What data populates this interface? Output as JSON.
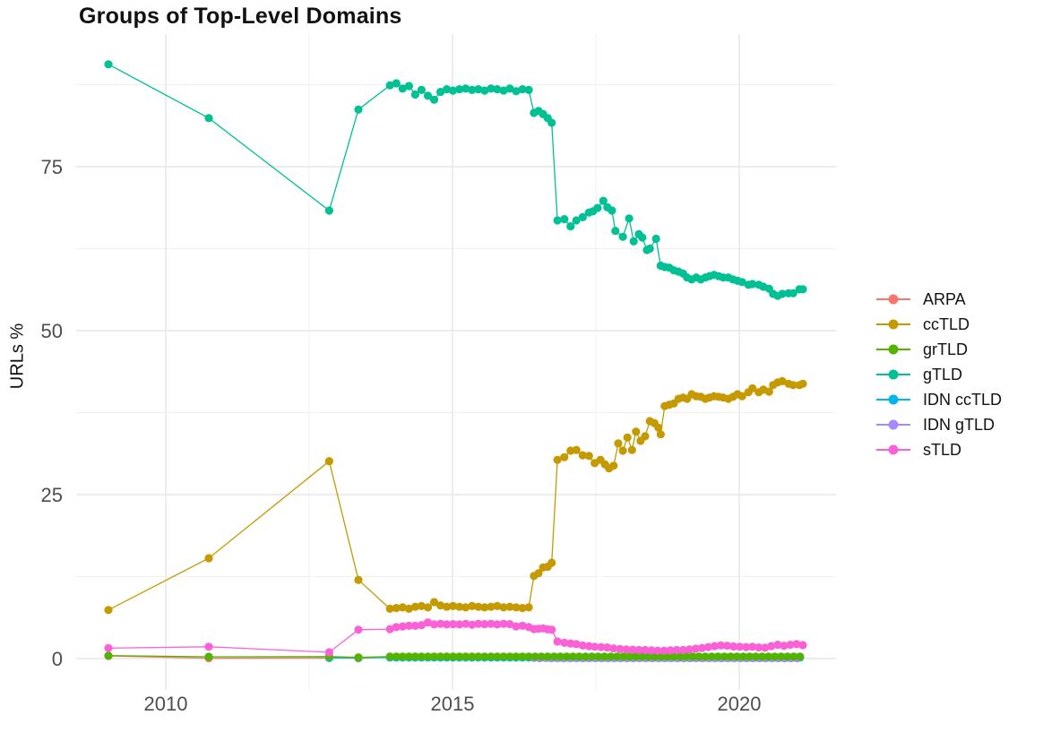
{
  "page": {
    "title": "Groups of Top-Level Domains"
  },
  "axis": {
    "y_tick_labels": [
      "0",
      "25",
      "50",
      "75"
    ],
    "x_tick_labels": [
      "2010",
      "2015",
      "2020"
    ]
  },
  "colors": {
    "title_text": "#111111",
    "tick_text": "#4d4d4d",
    "grid_major": "#e5e5e5",
    "grid_minor": "#f1f1f1",
    "background": "#ffffff"
  },
  "chart_data": {
    "type": "line",
    "title": "Groups of Top-Level Domains",
    "xlabel": "",
    "ylabel": "URLs %",
    "grid": "on",
    "legend_position": "right",
    "xlim": [
      2008.45,
      2021.7
    ],
    "ylim": [
      -4.8,
      95.2
    ],
    "x_ticks_major": [
      2010,
      2015,
      2020
    ],
    "x_ticks_minor": [
      2012.5,
      2017.5
    ],
    "y_ticks_major": [
      0,
      25,
      50,
      75
    ],
    "y_ticks_minor": [
      12.5,
      37.5,
      62.5,
      87.5
    ],
    "draw_order": [
      "ARPA",
      "IDN ccTLD",
      "IDN gTLD",
      "grTLD",
      "ccTLD",
      "gTLD",
      "sTLD"
    ],
    "series": [
      {
        "name": "ARPA",
        "color": "#F8766D",
        "points": [
          [
            2009.0,
            0.4
          ],
          [
            2010.75,
            0.05
          ],
          [
            2012.85,
            0.08
          ],
          [
            2013.36,
            0.05
          ],
          {
            "from": 2013.91,
            "to": 2021.11,
            "step": 0.11,
            "value": 0.22
          }
        ]
      },
      {
        "name": "ccTLD",
        "color": "#C49A00",
        "points": [
          [
            2009.0,
            7.4
          ],
          [
            2010.75,
            15.3
          ],
          [
            2012.85,
            30.1
          ],
          [
            2013.36,
            12.0
          ],
          [
            2013.91,
            7.6
          ],
          [
            2014.02,
            7.7
          ],
          [
            2014.13,
            7.8
          ],
          [
            2014.24,
            7.6
          ],
          [
            2014.35,
            7.9
          ],
          [
            2014.46,
            8.0
          ],
          [
            2014.57,
            7.8
          ],
          [
            2014.68,
            8.6
          ],
          [
            2014.79,
            8.1
          ],
          [
            2014.9,
            7.9
          ],
          [
            2015.01,
            8.0
          ],
          [
            2015.12,
            7.9
          ],
          [
            2015.23,
            7.8
          ],
          [
            2015.34,
            8.0
          ],
          [
            2015.45,
            7.9
          ],
          [
            2015.56,
            7.8
          ],
          [
            2015.67,
            7.9
          ],
          [
            2015.78,
            8.0
          ],
          [
            2015.89,
            7.8
          ],
          [
            2016.0,
            7.9
          ],
          [
            2016.11,
            7.8
          ],
          [
            2016.22,
            7.7
          ],
          [
            2016.33,
            7.8
          ],
          [
            2016.42,
            12.6
          ],
          [
            2016.5,
            13.0
          ],
          [
            2016.58,
            13.9
          ],
          [
            2016.66,
            14.0
          ],
          [
            2016.73,
            14.6
          ],
          [
            2016.83,
            30.3
          ],
          [
            2016.95,
            30.7
          ],
          [
            2017.06,
            31.7
          ],
          [
            2017.16,
            31.8
          ],
          [
            2017.27,
            31.0
          ],
          [
            2017.38,
            30.9
          ],
          [
            2017.48,
            29.8
          ],
          [
            2017.58,
            30.3
          ],
          [
            2017.66,
            29.6
          ],
          [
            2017.73,
            29.0
          ],
          [
            2017.81,
            29.4
          ],
          [
            2017.89,
            32.8
          ],
          [
            2017.97,
            31.7
          ],
          [
            2018.05,
            33.7
          ],
          [
            2018.13,
            31.8
          ],
          [
            2018.2,
            34.6
          ],
          [
            2018.28,
            33.2
          ],
          [
            2018.36,
            33.9
          ],
          [
            2018.44,
            36.2
          ],
          [
            2018.52,
            35.9
          ],
          [
            2018.59,
            35.2
          ],
          [
            2018.63,
            34.2
          ],
          [
            2018.7,
            38.5
          ],
          [
            2018.78,
            38.7
          ],
          [
            2018.86,
            38.9
          ],
          [
            2018.94,
            39.6
          ],
          [
            2019.02,
            39.8
          ],
          [
            2019.09,
            39.6
          ],
          [
            2019.17,
            40.3
          ],
          [
            2019.25,
            40.0
          ],
          [
            2019.33,
            39.9
          ],
          [
            2019.41,
            39.6
          ],
          [
            2019.48,
            39.8
          ],
          [
            2019.56,
            40.0
          ],
          [
            2019.64,
            39.9
          ],
          [
            2019.72,
            39.8
          ],
          [
            2019.81,
            39.6
          ],
          [
            2019.89,
            39.9
          ],
          [
            2019.97,
            40.3
          ],
          [
            2020.05,
            40.0
          ],
          [
            2020.16,
            40.6
          ],
          [
            2020.23,
            41.2
          ],
          [
            2020.34,
            40.6
          ],
          [
            2020.42,
            41.0
          ],
          [
            2020.52,
            40.7
          ],
          [
            2020.59,
            41.7
          ],
          [
            2020.67,
            42.1
          ],
          [
            2020.75,
            42.3
          ],
          [
            2020.86,
            41.9
          ],
          [
            2020.94,
            41.7
          ],
          [
            2021.05,
            41.7
          ],
          [
            2021.11,
            41.9
          ]
        ]
      },
      {
        "name": "grTLD",
        "color": "#53B400",
        "points": [
          [
            2009.0,
            0.45
          ],
          [
            2010.75,
            0.28
          ],
          [
            2012.85,
            0.3
          ],
          [
            2013.36,
            0.18
          ],
          {
            "from": 2013.91,
            "to": 2021.11,
            "step": 0.11,
            "value": 0.3
          }
        ]
      },
      {
        "name": "gTLD",
        "color": "#00C094",
        "points": [
          [
            2009.0,
            90.6
          ],
          [
            2010.75,
            82.4
          ],
          [
            2012.85,
            68.3
          ],
          [
            2013.36,
            83.7
          ],
          [
            2013.91,
            87.4
          ],
          [
            2014.02,
            87.7
          ],
          [
            2014.13,
            86.9
          ],
          [
            2014.24,
            87.3
          ],
          [
            2014.35,
            86.0
          ],
          [
            2014.46,
            86.7
          ],
          [
            2014.57,
            85.8
          ],
          [
            2014.68,
            85.2
          ],
          [
            2014.79,
            86.4
          ],
          [
            2014.9,
            86.8
          ],
          [
            2015.01,
            86.6
          ],
          [
            2015.12,
            86.8
          ],
          [
            2015.23,
            86.9
          ],
          [
            2015.34,
            86.7
          ],
          [
            2015.45,
            86.8
          ],
          [
            2015.56,
            86.6
          ],
          [
            2015.67,
            86.9
          ],
          [
            2015.78,
            86.8
          ],
          [
            2015.89,
            86.6
          ],
          [
            2016.0,
            86.9
          ],
          [
            2016.11,
            86.5
          ],
          [
            2016.22,
            86.8
          ],
          [
            2016.33,
            86.7
          ],
          [
            2016.42,
            83.2
          ],
          [
            2016.5,
            83.5
          ],
          [
            2016.58,
            83.0
          ],
          [
            2016.66,
            82.4
          ],
          [
            2016.73,
            81.7
          ],
          [
            2016.83,
            66.8
          ],
          [
            2016.95,
            67.0
          ],
          [
            2017.06,
            65.9
          ],
          [
            2017.16,
            66.8
          ],
          [
            2017.27,
            67.3
          ],
          [
            2017.38,
            68.0
          ],
          [
            2017.45,
            68.2
          ],
          [
            2017.53,
            68.7
          ],
          [
            2017.63,
            69.8
          ],
          [
            2017.7,
            68.8
          ],
          [
            2017.78,
            68.3
          ],
          [
            2017.84,
            65.2
          ],
          [
            2017.97,
            64.3
          ],
          [
            2018.08,
            67.1
          ],
          [
            2018.16,
            63.6
          ],
          [
            2018.25,
            64.7
          ],
          [
            2018.31,
            64.2
          ],
          [
            2018.39,
            62.3
          ],
          [
            2018.44,
            62.5
          ],
          [
            2018.55,
            64.0
          ],
          [
            2018.63,
            59.9
          ],
          [
            2018.7,
            59.7
          ],
          [
            2018.78,
            59.6
          ],
          [
            2018.86,
            59.2
          ],
          [
            2018.94,
            59.0
          ],
          [
            2019.02,
            58.7
          ],
          [
            2019.09,
            58.1
          ],
          [
            2019.17,
            57.8
          ],
          [
            2019.25,
            58.1
          ],
          [
            2019.33,
            57.8
          ],
          [
            2019.41,
            58.1
          ],
          [
            2019.48,
            58.3
          ],
          [
            2019.56,
            58.5
          ],
          [
            2019.64,
            58.3
          ],
          [
            2019.72,
            58.1
          ],
          [
            2019.81,
            58.1
          ],
          [
            2019.89,
            57.8
          ],
          [
            2019.97,
            57.6
          ],
          [
            2020.05,
            57.4
          ],
          [
            2020.16,
            57.0
          ],
          [
            2020.23,
            57.1
          ],
          [
            2020.34,
            57.0
          ],
          [
            2020.42,
            56.7
          ],
          [
            2020.52,
            56.4
          ],
          [
            2020.59,
            55.6
          ],
          [
            2020.67,
            55.3
          ],
          [
            2020.75,
            55.6
          ],
          [
            2020.86,
            55.7
          ],
          [
            2020.94,
            55.7
          ],
          [
            2021.05,
            56.3
          ],
          [
            2021.11,
            56.3
          ]
        ]
      },
      {
        "name": "IDN ccTLD",
        "color": "#00B6EB",
        "points": [
          [
            2012.85,
            0.1
          ],
          [
            2013.36,
            0.12
          ],
          {
            "from": 2013.91,
            "to": 2021.11,
            "step": 0.11,
            "value": 0.15
          }
        ]
      },
      {
        "name": "IDN gTLD",
        "color": "#A58AFF",
        "points": [
          [
            2016.42,
            0.1
          ],
          [
            2016.52,
            0.07
          ],
          [
            2016.62,
            0.1
          ],
          [
            2016.72,
            0.07
          ],
          {
            "from": 2016.83,
            "to": 2021.11,
            "step": 0.11,
            "value": 0.07
          }
        ]
      },
      {
        "name": "sTLD",
        "color": "#FB61D7",
        "points": [
          [
            2009.0,
            1.6
          ],
          [
            2010.75,
            1.8
          ],
          [
            2012.85,
            0.95
          ],
          [
            2013.36,
            4.4
          ],
          [
            2013.91,
            4.5
          ],
          [
            2014.02,
            4.8
          ],
          [
            2014.13,
            4.9
          ],
          [
            2014.24,
            5.0
          ],
          [
            2014.35,
            5.0
          ],
          [
            2014.46,
            5.1
          ],
          [
            2014.57,
            5.5
          ],
          [
            2014.68,
            5.2
          ],
          [
            2014.79,
            5.3
          ],
          [
            2014.9,
            5.2
          ],
          [
            2015.01,
            5.25
          ],
          [
            2015.12,
            5.2
          ],
          [
            2015.23,
            5.3
          ],
          [
            2015.34,
            5.15
          ],
          [
            2015.45,
            5.3
          ],
          [
            2015.56,
            5.25
          ],
          [
            2015.67,
            5.3
          ],
          [
            2015.78,
            5.2
          ],
          [
            2015.89,
            5.3
          ],
          [
            2016.0,
            5.25
          ],
          [
            2016.11,
            4.9
          ],
          [
            2016.22,
            5.0
          ],
          [
            2016.33,
            4.8
          ],
          [
            2016.42,
            4.5
          ],
          [
            2016.5,
            4.55
          ],
          [
            2016.58,
            4.6
          ],
          [
            2016.66,
            4.45
          ],
          [
            2016.73,
            4.4
          ],
          [
            2016.83,
            2.6
          ],
          [
            2016.95,
            2.4
          ],
          [
            2017.06,
            2.3
          ],
          [
            2017.16,
            2.2
          ],
          [
            2017.27,
            2.0
          ],
          [
            2017.38,
            1.9
          ],
          [
            2017.48,
            1.8
          ],
          [
            2017.59,
            1.75
          ],
          [
            2017.7,
            1.7
          ],
          [
            2017.81,
            1.55
          ],
          [
            2017.92,
            1.45
          ],
          [
            2018.03,
            1.4
          ],
          [
            2018.14,
            1.35
          ],
          [
            2018.25,
            1.3
          ],
          [
            2018.36,
            1.3
          ],
          [
            2018.47,
            1.25
          ],
          [
            2018.58,
            1.2
          ],
          [
            2018.69,
            1.2
          ],
          [
            2018.8,
            1.25
          ],
          [
            2018.91,
            1.3
          ],
          [
            2019.02,
            1.3
          ],
          [
            2019.13,
            1.4
          ],
          [
            2019.24,
            1.5
          ],
          [
            2019.35,
            1.6
          ],
          [
            2019.46,
            1.75
          ],
          [
            2019.57,
            1.9
          ],
          [
            2019.68,
            2.0
          ],
          [
            2019.79,
            1.95
          ],
          [
            2019.9,
            1.85
          ],
          [
            2020.01,
            1.8
          ],
          [
            2020.12,
            1.75
          ],
          [
            2020.23,
            1.8
          ],
          [
            2020.34,
            1.7
          ],
          [
            2020.45,
            1.65
          ],
          [
            2020.56,
            1.9
          ],
          [
            2020.67,
            2.1
          ],
          [
            2020.78,
            1.95
          ],
          [
            2020.89,
            2.1
          ],
          [
            2021.0,
            2.2
          ],
          [
            2021.11,
            2.05
          ]
        ]
      }
    ]
  }
}
